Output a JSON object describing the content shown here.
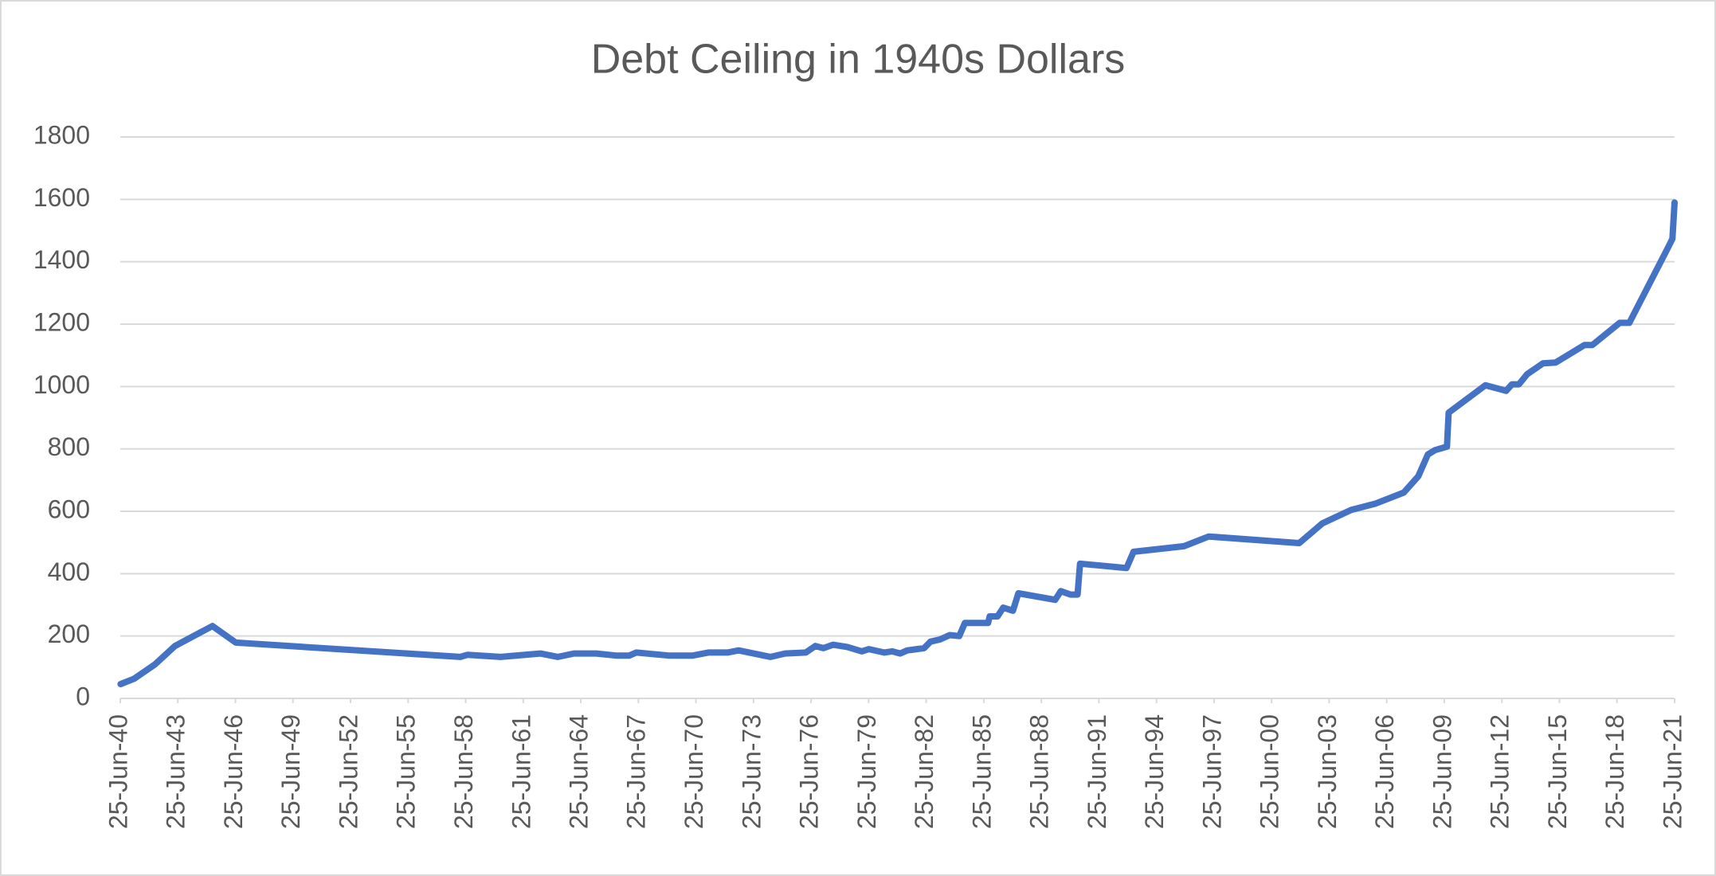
{
  "chart_data": {
    "type": "line",
    "title": "Debt Ceiling in 1940s Dollars",
    "x": [
      "1940-07-01",
      "1941-03-15",
      "1942-04-15",
      "1943-05-01",
      "1945-04-15",
      "1946-07-01",
      "1958-03-15",
      "1958-08-01",
      "1960-04-15",
      "1962-05-15",
      "1963-04-15",
      "1964-02-15",
      "1965-04-15",
      "1966-05-15",
      "1967-01-01",
      "1967-05-15",
      "1969-02-15",
      "1970-04-15",
      "1971-02-15",
      "1972-02-15",
      "1972-09-15",
      "1974-05-15",
      "1975-02-15",
      "1976-03-15",
      "1976-09-15",
      "1977-02-15",
      "1977-08-15",
      "1978-05-15",
      "1979-02-15",
      "1979-07-01",
      "1980-04-15",
      "1980-09-15",
      "1981-02-15",
      "1981-07-01",
      "1982-05-15",
      "1982-09-15",
      "1983-03-15",
      "1983-09-15",
      "1984-03-15",
      "1984-07-01",
      "1985-09-15",
      "1985-10-15",
      "1986-03-15",
      "1986-07-01",
      "1987-01-01",
      "1987-04-15",
      "1989-03-15",
      "1989-07-01",
      "1990-01-01",
      "1990-05-15",
      "1990-07-01",
      "1992-12-01",
      "1993-04-15",
      "1995-12-01",
      "1997-03-15",
      "2001-12-01",
      "2003-02-15",
      "2004-08-15",
      "2005-12-01",
      "2007-05-15",
      "2008-02-15",
      "2008-08-15",
      "2009-01-01",
      "2009-08-15",
      "2009-09-15",
      "2011-08-15",
      "2012-09-15",
      "2013-01-01",
      "2013-05-15",
      "2013-10-15",
      "2014-08-15",
      "2015-04-15",
      "2016-10-15",
      "2017-03-15",
      "2018-08-15",
      "2019-02-15",
      "2021-03-15",
      "2021-05-15",
      "2021-06-25"
    ],
    "values": [
      46,
      63,
      109,
      168,
      232,
      179,
      133,
      140,
      133,
      144,
      133,
      144,
      144,
      137,
      137,
      147,
      137,
      137,
      147,
      147,
      154,
      133,
      144,
      147,
      168,
      161,
      172,
      165,
      151,
      158,
      147,
      151,
      144,
      154,
      161,
      182,
      189,
      203,
      200,
      242,
      242,
      263,
      263,
      291,
      281,
      337,
      316,
      344,
      333,
      333,
      432,
      418,
      470,
      488,
      519,
      498,
      561,
      604,
      625,
      660,
      712,
      782,
      796,
      807,
      916,
      1004,
      986,
      1007,
      1007,
      1039,
      1074,
      1077,
      1133,
      1133,
      1204,
      1204,
      1453,
      1474,
      1590
    ],
    "color": "#4472c4",
    "xlim": [
      "1940-06-25",
      "2021-06-25"
    ],
    "xticks": [
      {
        "value": "1940-06-25",
        "label": "25-Jun-40"
      },
      {
        "value": "1943-06-25",
        "label": "25-Jun-43"
      },
      {
        "value": "1946-06-25",
        "label": "25-Jun-46"
      },
      {
        "value": "1949-06-25",
        "label": "25-Jun-49"
      },
      {
        "value": "1952-06-25",
        "label": "25-Jun-52"
      },
      {
        "value": "1955-06-25",
        "label": "25-Jun-55"
      },
      {
        "value": "1958-06-25",
        "label": "25-Jun-58"
      },
      {
        "value": "1961-06-25",
        "label": "25-Jun-61"
      },
      {
        "value": "1964-06-25",
        "label": "25-Jun-64"
      },
      {
        "value": "1967-06-25",
        "label": "25-Jun-67"
      },
      {
        "value": "1970-06-25",
        "label": "25-Jun-70"
      },
      {
        "value": "1973-06-25",
        "label": "25-Jun-73"
      },
      {
        "value": "1976-06-25",
        "label": "25-Jun-76"
      },
      {
        "value": "1979-06-25",
        "label": "25-Jun-79"
      },
      {
        "value": "1982-06-25",
        "label": "25-Jun-82"
      },
      {
        "value": "1985-06-25",
        "label": "25-Jun-85"
      },
      {
        "value": "1988-06-25",
        "label": "25-Jun-88"
      },
      {
        "value": "1991-06-25",
        "label": "25-Jun-91"
      },
      {
        "value": "1994-06-25",
        "label": "25-Jun-94"
      },
      {
        "value": "1997-06-25",
        "label": "25-Jun-97"
      },
      {
        "value": "2000-06-25",
        "label": "25-Jun-00"
      },
      {
        "value": "2003-06-25",
        "label": "25-Jun-03"
      },
      {
        "value": "2006-06-25",
        "label": "25-Jun-06"
      },
      {
        "value": "2009-06-25",
        "label": "25-Jun-09"
      },
      {
        "value": "2012-06-25",
        "label": "25-Jun-12"
      },
      {
        "value": "2015-06-25",
        "label": "25-Jun-15"
      },
      {
        "value": "2018-06-25",
        "label": "25-Jun-18"
      },
      {
        "value": "2021-06-25",
        "label": "25-Jun-21"
      }
    ],
    "ylim": [
      0,
      1800
    ],
    "yticks": [
      0,
      200,
      400,
      600,
      800,
      1000,
      1200,
      1400,
      1600,
      1800
    ],
    "grid": true
  }
}
